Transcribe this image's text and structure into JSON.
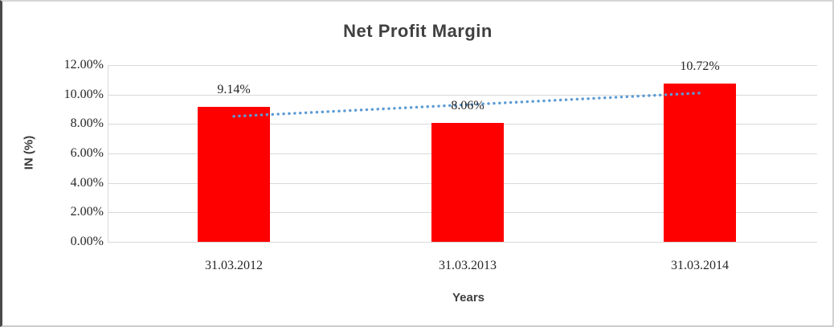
{
  "chart_data": {
    "type": "bar",
    "title": "Net Profit Margin",
    "xlabel": "Years",
    "ylabel": "IN (%)",
    "categories": [
      "31.03.2012",
      "31.03.2013",
      "31.03.2014"
    ],
    "values": [
      9.14,
      8.06,
      10.72
    ],
    "data_labels": [
      "9.14%",
      "8.06%",
      "10.72%"
    ],
    "y_ticks": [
      "12.00%",
      "10.00%",
      "8.00%",
      "6.00%",
      "4.00%",
      "2.00%",
      "0.00%"
    ],
    "ylim": [
      0,
      12
    ],
    "grid": true,
    "legend": "none",
    "bar_color": "#ff0000",
    "gridline_color": "#d9d9d9",
    "text_color": "#262626",
    "title_color": "#404040",
    "trendline": {
      "type": "linear",
      "style": "dotted",
      "color": "#5b9bd5",
      "start_pct": 8.52,
      "end_pct": 10.1
    }
  }
}
